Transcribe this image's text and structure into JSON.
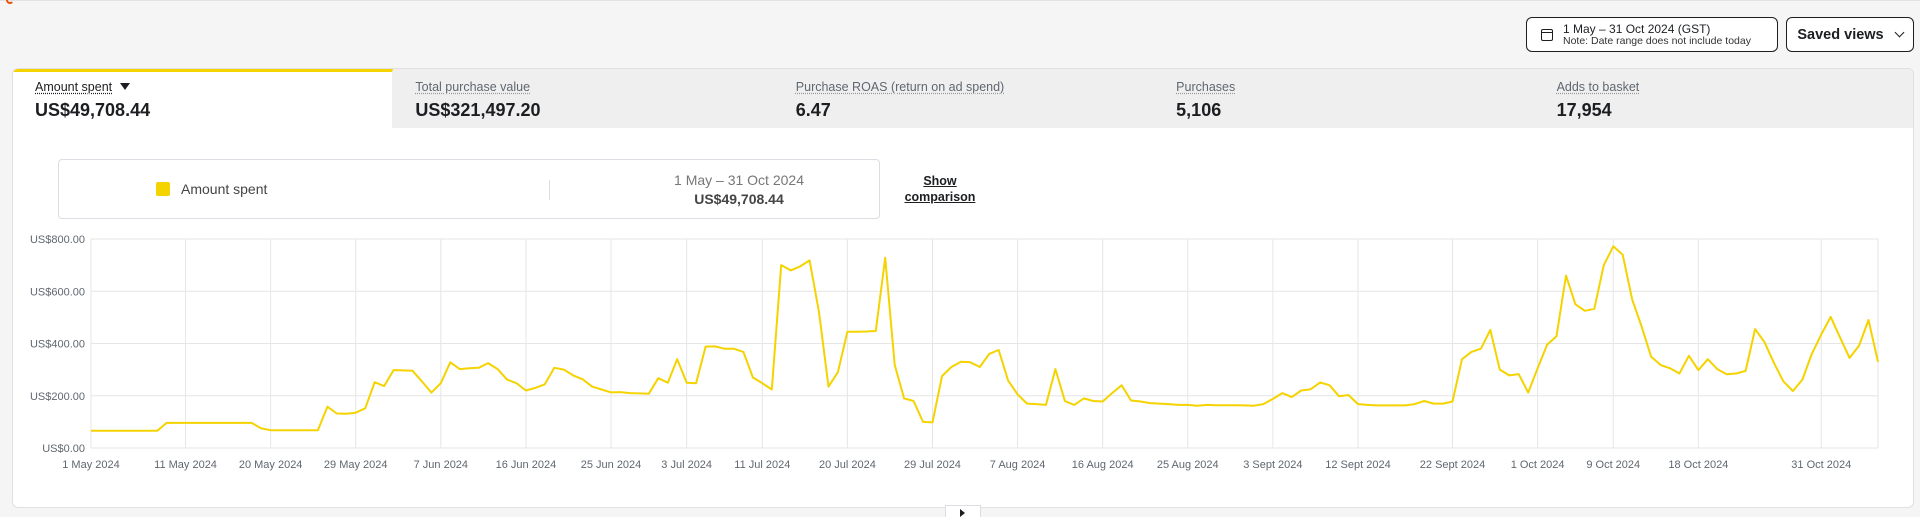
{
  "date_range": {
    "range": "1 May – 31 Oct 2024 (GST)",
    "note": "Note: Date range does not include today"
  },
  "saved_views": {
    "label": "Saved views"
  },
  "tabs": [
    {
      "label": "Amount spent",
      "value": "US$49,708.44"
    },
    {
      "label": "Total purchase value",
      "value": "US$321,497.20"
    },
    {
      "label": "Purchase ROAS (return on ad spend)",
      "value": "6.47"
    },
    {
      "label": "Purchases",
      "value": "5,106"
    },
    {
      "label": "Adds to basket",
      "value": "17,954"
    }
  ],
  "legend": {
    "series_name": "Amount spent",
    "range": "1 May – 31 Oct 2024",
    "total": "US$49,708.44",
    "show_comparison": "Show comparison"
  },
  "colors": {
    "series": "#f5d300",
    "grid": "#e6e6e6"
  },
  "chart_data": {
    "type": "line",
    "title": "",
    "xlabel": "",
    "ylabel": "",
    "x_start": "1 May 2024",
    "x_end": "31 Oct 2024",
    "x_ticks": [
      "1 May 2024",
      "11 May 2024",
      "20 May 2024",
      "29 May 2024",
      "7 Jun 2024",
      "16 Jun 2024",
      "25 Jun 2024",
      "3 Jul 2024",
      "11 Jul 2024",
      "20 Jul 2024",
      "29 Jul 2024",
      "7 Aug 2024",
      "16 Aug 2024",
      "25 Aug 2024",
      "3 Sept 2024",
      "12 Sept 2024",
      "22 Sept 2024",
      "1 Oct 2024",
      "9 Oct 2024",
      "18 Oct 2024",
      "31 Oct 2024"
    ],
    "y_ticks": [
      "US$0.00",
      "US$200.00",
      "US$400.00",
      "US$600.00",
      "US$800.00"
    ],
    "ylim": [
      0,
      800
    ],
    "grid": true,
    "series": [
      {
        "name": "Amount spent",
        "values": [
          66,
          66,
          66,
          66,
          66,
          66,
          66,
          66,
          96,
          96,
          96,
          96,
          96,
          96,
          96,
          96,
          96,
          96,
          75,
          68,
          68,
          68,
          68,
          68,
          68,
          158,
          132,
          131,
          135,
          152,
          252,
          237,
          298,
          297,
          296,
          255,
          212,
          248,
          328,
          302,
          305,
          307,
          325,
          302,
          262,
          248,
          220,
          230,
          244,
          307,
          300,
          278,
          263,
          235,
          224,
          213,
          214,
          210,
          209,
          208,
          267,
          250,
          340,
          250,
          248,
          388,
          389,
          380,
          380,
          368,
          270,
          248,
          224,
          700,
          680,
          695,
          718,
          520,
          235,
          290,
          445,
          445,
          446,
          448,
          728,
          318,
          190,
          180,
          100,
          98,
          275,
          310,
          330,
          328,
          310,
          360,
          375,
          258,
          205,
          170,
          168,
          165,
          302,
          180,
          165,
          190,
          180,
          178,
          210,
          240,
          182,
          178,
          172,
          170,
          168,
          165,
          165,
          162,
          165,
          164,
          164,
          164,
          163,
          162,
          168,
          188,
          210,
          195,
          220,
          225,
          251,
          240,
          198,
          203,
          168,
          165,
          163,
          163,
          163,
          163,
          168,
          180,
          170,
          170,
          178,
          340,
          368,
          380,
          452,
          300,
          278,
          283,
          212,
          305,
          395,
          428,
          660,
          550,
          525,
          533,
          700,
          772,
          740,
          568,
          465,
          350,
          318,
          305,
          285,
          353,
          298,
          340,
          302,
          282,
          285,
          295,
          455,
          405,
          325,
          255,
          218,
          262,
          360,
          435,
          502,
          422,
          345,
          392,
          490,
          330
        ]
      }
    ]
  }
}
